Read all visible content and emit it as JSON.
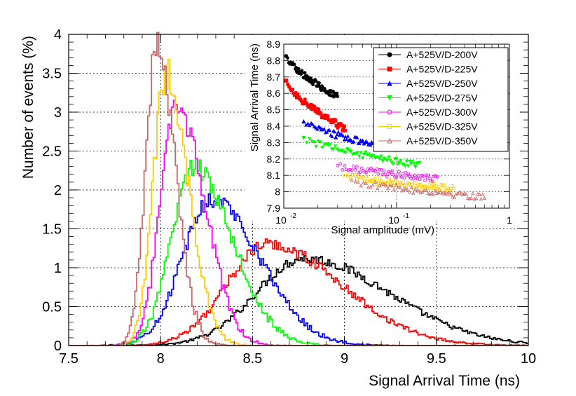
{
  "chart_data": [
    {
      "type": "line",
      "subtype": "histogram",
      "title": "",
      "xlabel": "Signal Arrival Time (ns)",
      "ylabel": "Number of events (%)",
      "xlim": [
        7.5,
        10
      ],
      "ylim": [
        0,
        4
      ],
      "xticks": [
        "7.5",
        "8",
        "8.5",
        "9",
        "9.5",
        "10"
      ],
      "yticks": [
        "0",
        "0.5",
        "1",
        "1.5",
        "2",
        "2.5",
        "3",
        "3.5",
        "4"
      ],
      "grid": true,
      "series": [
        {
          "name": "A+525V/D-200V",
          "color": "#000000",
          "mean": 8.78,
          "sigma_left": 0.26,
          "sigma_right": 0.46,
          "peak": 1.12
        },
        {
          "name": "A+525V/D-225V",
          "color": "#ff0000",
          "mean": 8.58,
          "sigma_left": 0.22,
          "sigma_right": 0.4,
          "peak": 1.3
        },
        {
          "name": "A+525V/D-250V",
          "color": "#0000ff",
          "mean": 8.28,
          "sigma_left": 0.16,
          "sigma_right": 0.26,
          "peak": 1.88
        },
        {
          "name": "A+525V/D-275V",
          "color": "#00ff00",
          "mean": 8.18,
          "sigma_left": 0.12,
          "sigma_right": 0.21,
          "peak": 2.3
        },
        {
          "name": "A+525V/D-300V",
          "color": "#ff00ff",
          "mean": 8.09,
          "sigma_left": 0.09,
          "sigma_right": 0.15,
          "peak": 3.05
        },
        {
          "name": "A+525V/D-325V",
          "color": "#ffcc00",
          "mean": 8.03,
          "sigma_left": 0.07,
          "sigma_right": 0.12,
          "peak": 3.5
        },
        {
          "name": "A+525V/D-350V",
          "color": "#cc6666",
          "mean": 7.98,
          "sigma_left": 0.06,
          "sigma_right": 0.1,
          "peak": 3.9
        }
      ]
    },
    {
      "type": "scatter",
      "title": "",
      "xlabel": "Signal amplitude (mV)",
      "ylabel": "Signal Arrival Time (ns)",
      "xscale": "log",
      "xlim": [
        0.01,
        1
      ],
      "ylim": [
        7.9,
        8.9
      ],
      "xticks": [
        "10",
        "10",
        "1"
      ],
      "xtick_exponents": [
        "-2",
        "-1",
        ""
      ],
      "yticks": [
        "7.9",
        "8",
        "8.1",
        "8.2",
        "8.3",
        "8.4",
        "8.5",
        "8.6",
        "8.7",
        "8.8",
        "8.9"
      ],
      "grid": true,
      "legend_position": "top-right",
      "series": [
        {
          "name": "A+525V/D-200V",
          "color": "#000000",
          "marker": "circle-filled",
          "x_range": [
            0.0105,
            0.03
          ],
          "y_start": 8.83,
          "y_end": 8.58
        },
        {
          "name": "A+525V/D-225V",
          "color": "#ff0000",
          "marker": "square-filled",
          "x_range": [
            0.0105,
            0.035
          ],
          "y_start": 8.68,
          "y_end": 8.38
        },
        {
          "name": "A+525V/D-250V",
          "color": "#0000ff",
          "marker": "triangle-filled",
          "x_range": [
            0.015,
            0.085
          ],
          "y_start": 8.43,
          "y_end": 8.27
        },
        {
          "name": "A+525V/D-275V",
          "color": "#00ff00",
          "marker": "triangle-down-filled",
          "x_range": [
            0.015,
            0.16
          ],
          "y_start": 8.33,
          "y_end": 8.16
        },
        {
          "name": "A+525V/D-300V",
          "color": "#ff00ff",
          "marker": "circle-open",
          "x_range": [
            0.03,
            0.23
          ],
          "y_start": 8.16,
          "y_end": 8.08
        },
        {
          "name": "A+525V/D-325V",
          "color": "#ffcc00",
          "marker": "square-open",
          "x_range": [
            0.035,
            0.32
          ],
          "y_start": 8.1,
          "y_end": 8.02
        },
        {
          "name": "A+525V/D-350V",
          "color": "#cc6666",
          "marker": "triangle-open",
          "x_range": [
            0.04,
            0.6
          ],
          "y_start": 8.07,
          "y_end": 7.97
        }
      ]
    }
  ]
}
